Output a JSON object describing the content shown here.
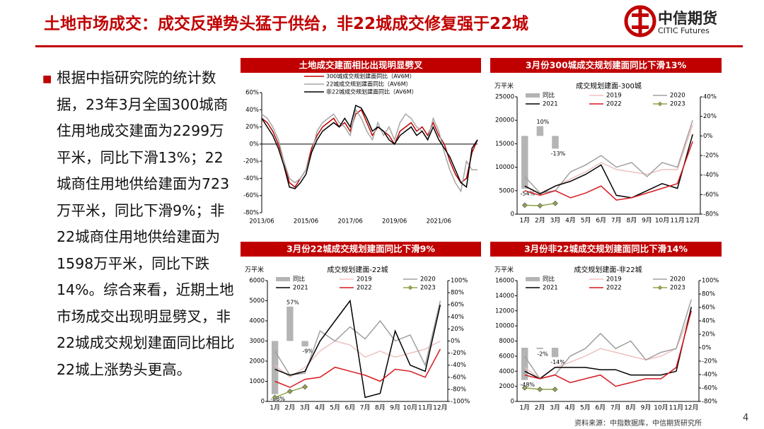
{
  "header": {
    "title": "土地市场成交：成交反弹势头猛于供给，非22城成交修复强于22城",
    "logo_cn": "中信期货",
    "logo_en": "CITIC Futures"
  },
  "body": {
    "text": "根据中指研究院的统计数据，23年3月全国300城商住用地成交建面为2299万平米，同比下滑13%；22城商住用地供给建面为723万平米，同比下滑9%；非22城商住用地供给建面为1598万平米，同比下跌14%。综合来看，近期土地市场成交出现明显劈叉，非22城成交规划建面同比相比22城上涨势头更高。"
  },
  "footer": {
    "source": "资料来源：中指数据库，中信期货研究所",
    "page": "4"
  },
  "chart_data": [
    {
      "type": "line",
      "title": "土地成交建面相比出现明显劈叉",
      "categories": [
        "2013/06",
        null,
        null,
        null,
        null,
        null,
        null,
        null,
        "2015/06",
        null,
        null,
        null,
        null,
        null,
        null,
        null,
        "2017/06",
        null,
        null,
        null,
        null,
        null,
        null,
        null,
        "2019/06",
        null,
        null,
        null,
        null,
        null,
        null,
        null,
        "2021/06",
        null,
        null,
        null,
        null,
        null,
        null,
        null
      ],
      "series": [
        {
          "name": "300城成交规划建面同比（AV6M）",
          "color": "#c00000",
          "values": [
            30,
            25,
            15,
            0,
            -20,
            -45,
            -50,
            -40,
            -30,
            -5,
            10,
            20,
            25,
            30,
            20,
            25,
            15,
            35,
            40,
            25,
            10,
            20,
            15,
            10,
            0,
            15,
            20,
            25,
            15,
            20,
            10,
            25,
            10,
            0,
            -20,
            -35,
            -45,
            -40,
            -10,
            5
          ]
        },
        {
          "name": "22城成交规划建面同比（AV6M）",
          "color": "#a6a6a6",
          "values": [
            35,
            30,
            20,
            5,
            -20,
            -40,
            -45,
            -40,
            -30,
            -10,
            15,
            25,
            30,
            35,
            25,
            20,
            10,
            40,
            30,
            15,
            5,
            25,
            10,
            20,
            5,
            25,
            35,
            30,
            20,
            15,
            5,
            30,
            15,
            -10,
            -30,
            -45,
            -55,
            -20,
            -30,
            -30
          ]
        },
        {
          "name": "非22城成交规划建面同比（AV6M）",
          "color": "#000000",
          "values": [
            30,
            20,
            10,
            -5,
            -25,
            -50,
            -52,
            -45,
            -35,
            -10,
            5,
            15,
            20,
            25,
            20,
            30,
            20,
            45,
            42,
            30,
            15,
            20,
            15,
            5,
            0,
            10,
            15,
            20,
            10,
            15,
            5,
            20,
            5,
            -5,
            -15,
            -30,
            -45,
            -50,
            -5,
            5
          ]
        }
      ],
      "ylim": [
        -80,
        60
      ],
      "yticks": [
        {
          "value": -80,
          "label": "-80%"
        },
        {
          "value": -60,
          "label": "-60%"
        },
        {
          "value": -40,
          "label": "-40%"
        },
        {
          "value": -20,
          "label": "-20%"
        },
        {
          "value": 0,
          "label": "0%"
        },
        {
          "value": 20,
          "label": "20%"
        },
        {
          "value": 40,
          "label": "40%"
        },
        {
          "value": 60,
          "label": "60%"
        }
      ]
    },
    {
      "type": "combo",
      "title": "3月份300城成交规划建面同比下滑13%",
      "subtitle": "成交规划建面-300城",
      "ylabel": "万平米",
      "categories": [
        "1月",
        "2月",
        "3月",
        "4月",
        "5月",
        "6月",
        "7月",
        "8月",
        "9月",
        "10月",
        "11月",
        "12月"
      ],
      "series": [
        {
          "name": "同比",
          "kind": "bar",
          "axis": "y2",
          "color": "#b4b4b4",
          "values": [
            -54,
            10,
            -13,
            null,
            null,
            null,
            null,
            null,
            null,
            null,
            null,
            null
          ],
          "value_labels": [
            "-54%",
            "10%",
            "-13%",
            null,
            null,
            null,
            null,
            null,
            null,
            null,
            null,
            null
          ]
        },
        {
          "name": "2019",
          "kind": "line",
          "color": "#f0c0c0",
          "values": [
            6000,
            4500,
            6000,
            7500,
            9000,
            11000,
            9500,
            9000,
            8500,
            9500,
            9500,
            19000
          ]
        },
        {
          "name": "2020",
          "kind": "line",
          "color": "#a0a0a0",
          "values": [
            8000,
            4500,
            5000,
            9000,
            10500,
            12500,
            10000,
            11000,
            8000,
            11000,
            10000,
            20000
          ]
        },
        {
          "name": "2021",
          "kind": "line",
          "color": "#000000",
          "values": [
            6000,
            4300,
            6000,
            7000,
            8500,
            10500,
            4000,
            3500,
            5000,
            6500,
            5500,
            17000
          ]
        },
        {
          "name": "2022",
          "kind": "line",
          "color": "#d71920",
          "values": [
            5000,
            4000,
            5000,
            3500,
            4500,
            6000,
            3000,
            3500,
            4500,
            5500,
            6500,
            15500
          ]
        },
        {
          "name": "2023",
          "kind": "line",
          "marker": "diamond",
          "color": "#8fa34e",
          "values": [
            1900,
            1800,
            2299,
            null,
            null,
            null,
            null,
            null,
            null,
            null,
            null,
            null
          ]
        }
      ],
      "ylim": [
        0,
        25000
      ],
      "yticks": [
        0,
        5000,
        10000,
        15000,
        20000,
        25000
      ],
      "y2lim": [
        -80,
        40
      ],
      "y2ticks": [
        {
          "value": -80,
          "label": "-80%"
        },
        {
          "value": -60,
          "label": "-60%"
        },
        {
          "value": -40,
          "label": "-40%"
        },
        {
          "value": -20,
          "label": "-20%"
        },
        {
          "value": 0,
          "label": "0%"
        },
        {
          "value": 20,
          "label": "20%"
        },
        {
          "value": 40,
          "label": "40%"
        }
      ]
    },
    {
      "type": "combo",
      "title": "3月份22城成交规划建面同比下滑9%",
      "subtitle": "成交规划建面-22城",
      "ylabel": "万平米",
      "categories": [
        "1月",
        "2月",
        "3月",
        "4月",
        "5月",
        "6月",
        "7月",
        "8月",
        "9月",
        "10月",
        "11月",
        "12月"
      ],
      "series": [
        {
          "name": "同比",
          "kind": "bar",
          "axis": "y2",
          "color": "#b4b4b4",
          "values": [
            -88,
            57,
            -9,
            null,
            null,
            null,
            null,
            null,
            null,
            null,
            null,
            null
          ],
          "value_labels": [
            "-88%",
            "57%",
            "-9%",
            null,
            null,
            null,
            null,
            null,
            null,
            null,
            null,
            null
          ]
        },
        {
          "name": "2019",
          "kind": "line",
          "color": "#f0c0c0",
          "values": [
            1800,
            1200,
            1700,
            2500,
            3000,
            2800,
            2200,
            2500,
            2200,
            2400,
            2600,
            3000
          ]
        },
        {
          "name": "2020",
          "kind": "line",
          "color": "#a0a0a0",
          "values": [
            2500,
            1300,
            1400,
            3500,
            3000,
            3700,
            3100,
            4000,
            3000,
            3300,
            1800,
            5000
          ]
        },
        {
          "name": "2021",
          "kind": "line",
          "color": "#000000",
          "values": [
            1600,
            1300,
            1500,
            3000,
            4000,
            5000,
            200,
            400,
            3500,
            1800,
            1500,
            4800
          ]
        },
        {
          "name": "2022",
          "kind": "line",
          "color": "#d71920",
          "values": [
            1000,
            700,
            1100,
            1200,
            1700,
            1500,
            1300,
            1000,
            1600,
            1500,
            1200,
            2600
          ]
        },
        {
          "name": "2023",
          "kind": "line",
          "marker": "diamond",
          "color": "#8fa34e",
          "values": [
            200,
            500,
            723,
            null,
            null,
            null,
            null,
            null,
            null,
            null,
            null,
            null
          ]
        }
      ],
      "ylim": [
        0,
        6000
      ],
      "yticks": [
        0,
        1000,
        2000,
        3000,
        4000,
        5000,
        6000
      ],
      "y2lim": [
        -100,
        100
      ],
      "y2ticks": [
        {
          "value": -100,
          "label": "-100%"
        },
        {
          "value": -80,
          "label": "-80%"
        },
        {
          "value": -60,
          "label": "-60%"
        },
        {
          "value": -40,
          "label": "-40%"
        },
        {
          "value": -20,
          "label": "-20%"
        },
        {
          "value": 0,
          "label": "0%"
        },
        {
          "value": 20,
          "label": "20%"
        },
        {
          "value": 40,
          "label": "40%"
        },
        {
          "value": 60,
          "label": "60%"
        },
        {
          "value": 80,
          "label": "80%"
        },
        {
          "value": 100,
          "label": "100%"
        }
      ]
    },
    {
      "type": "combo",
      "title": "3月份非22城成交规划建面同比下滑14%",
      "subtitle": "成交规划建面-非22城",
      "ylabel": "万平米",
      "categories": [
        "1月",
        "2月",
        "3月",
        "4月",
        "5月",
        "6月",
        "7月",
        "8月",
        "9月",
        "10月",
        "11月",
        "12月"
      ],
      "series": [
        {
          "name": "同比",
          "kind": "bar",
          "axis": "y2",
          "color": "#b4b4b4",
          "values": [
            -48,
            -2,
            -14,
            null,
            null,
            null,
            null,
            null,
            null,
            null,
            null,
            null
          ],
          "value_labels": [
            "-48%",
            "-2%",
            "-14%",
            null,
            null,
            null,
            null,
            null,
            null,
            null,
            null,
            null
          ]
        },
        {
          "name": "2019",
          "kind": "line",
          "color": "#f0c0c0",
          "values": [
            4500,
            3000,
            4500,
            5200,
            6000,
            7000,
            6500,
            6000,
            5500,
            6000,
            7000,
            12000
          ]
        },
        {
          "name": "2020",
          "kind": "line",
          "color": "#a0a0a0",
          "values": [
            6000,
            3000,
            3500,
            6000,
            7000,
            9000,
            7000,
            8000,
            5500,
            6500,
            7000,
            13500
          ]
        },
        {
          "name": "2021",
          "kind": "line",
          "color": "#000000",
          "values": [
            4000,
            3000,
            4500,
            4500,
            4500,
            4200,
            4200,
            3500,
            3500,
            3500,
            4000,
            12500
          ]
        },
        {
          "name": "2022",
          "kind": "line",
          "color": "#d71920",
          "values": [
            3500,
            3000,
            3500,
            2500,
            3000,
            3500,
            2000,
            2500,
            3000,
            3000,
            4500,
            12000
          ]
        },
        {
          "name": "2023",
          "kind": "line",
          "marker": "diamond",
          "color": "#8fa34e",
          "values": [
            1800,
            1600,
            1598,
            null,
            null,
            null,
            null,
            null,
            null,
            null,
            null,
            null
          ]
        }
      ],
      "ylim": [
        0,
        16000
      ],
      "yticks": [
        0,
        2000,
        4000,
        6000,
        8000,
        10000,
        12000,
        14000,
        16000
      ],
      "y2lim": [
        -80,
        100
      ],
      "y2ticks": [
        {
          "value": -80,
          "label": "-80%"
        },
        {
          "value": -60,
          "label": "-60%"
        },
        {
          "value": -40,
          "label": "-40%"
        },
        {
          "value": -20,
          "label": "-20%"
        },
        {
          "value": 0,
          "label": "0%"
        },
        {
          "value": 20,
          "label": "20%"
        },
        {
          "value": 40,
          "label": "40%"
        },
        {
          "value": 60,
          "label": "60%"
        },
        {
          "value": 80,
          "label": "80%"
        },
        {
          "value": 100,
          "label": "100%"
        }
      ]
    }
  ]
}
